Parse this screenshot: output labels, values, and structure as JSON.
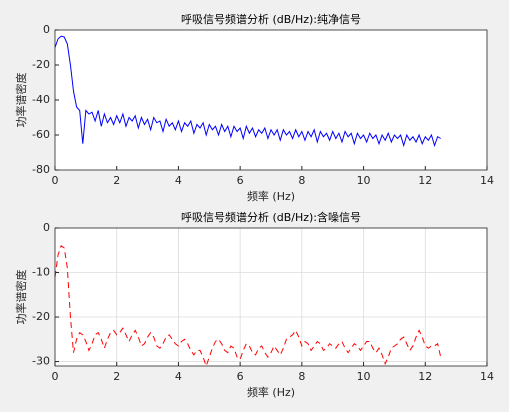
{
  "chart_data": [
    {
      "type": "line",
      "title": "呼吸信号频谱分析 (dB/Hz):纯净信号",
      "xlabel": "频率 (Hz)",
      "ylabel": "功率谱密度",
      "xlim": [
        0,
        14
      ],
      "xticks": [
        0,
        2,
        4,
        6,
        8,
        10,
        12,
        14
      ],
      "ylim": [
        -80,
        0
      ],
      "yticks": [
        -80,
        -60,
        -40,
        -20,
        0
      ],
      "grid": false,
      "color": "#0000ff",
      "linestyle": "solid",
      "x": [
        0,
        0.1,
        0.2,
        0.3,
        0.4,
        0.5,
        0.6,
        0.7,
        0.8,
        0.9,
        1,
        1.1,
        1.2,
        1.3,
        1.4,
        1.5,
        1.6,
        1.7,
        1.8,
        1.9,
        2,
        2.1,
        2.2,
        2.3,
        2.4,
        2.5,
        2.6,
        2.7,
        2.8,
        2.9,
        3,
        3.1,
        3.2,
        3.3,
        3.4,
        3.5,
        3.6,
        3.7,
        3.8,
        3.9,
        4,
        4.1,
        4.2,
        4.3,
        4.4,
        4.5,
        4.6,
        4.7,
        4.8,
        4.9,
        5,
        5.1,
        5.2,
        5.3,
        5.4,
        5.5,
        5.6,
        5.7,
        5.8,
        5.9,
        6,
        6.1,
        6.2,
        6.3,
        6.4,
        6.5,
        6.6,
        6.7,
        6.8,
        6.9,
        7,
        7.1,
        7.2,
        7.3,
        7.4,
        7.5,
        7.6,
        7.7,
        7.8,
        7.9,
        8,
        8.1,
        8.2,
        8.3,
        8.4,
        8.5,
        8.6,
        8.7,
        8.8,
        8.9,
        9,
        9.1,
        9.2,
        9.3,
        9.4,
        9.5,
        9.6,
        9.7,
        9.8,
        9.9,
        10,
        10.1,
        10.2,
        10.3,
        10.4,
        10.5,
        10.6,
        10.7,
        10.8,
        10.9,
        11,
        11.1,
        11.2,
        11.3,
        11.4,
        11.5,
        11.6,
        11.7,
        11.8,
        11.9,
        12,
        12.1,
        12.2,
        12.3,
        12.4,
        12.5
      ],
      "values": [
        -10,
        -5,
        -3.5,
        -4,
        -8,
        -20,
        -35,
        -44,
        -46,
        -65,
        -46,
        -48,
        -47,
        -52,
        -46,
        -55,
        -48,
        -53,
        -50,
        -54,
        -49,
        -53,
        -48,
        -55,
        -50,
        -52,
        -49,
        -56,
        -50,
        -54,
        -51,
        -57,
        -50,
        -53,
        -52,
        -58,
        -51,
        -55,
        -53,
        -57,
        -52,
        -58,
        -53,
        -55,
        -52,
        -59,
        -54,
        -56,
        -53,
        -60,
        -54,
        -57,
        -55,
        -60,
        -54,
        -58,
        -55,
        -61,
        -55,
        -58,
        -56,
        -62,
        -55,
        -59,
        -56,
        -61,
        -57,
        -59,
        -56,
        -62,
        -57,
        -60,
        -57,
        -63,
        -57,
        -60,
        -58,
        -62,
        -57,
        -61,
        -58,
        -63,
        -58,
        -61,
        -57,
        -64,
        -58,
        -61,
        -59,
        -63,
        -58,
        -62,
        -59,
        -64,
        -58,
        -61,
        -59,
        -65,
        -59,
        -62,
        -60,
        -64,
        -59,
        -62,
        -60,
        -65,
        -60,
        -63,
        -59,
        -64,
        -60,
        -62,
        -60,
        -66,
        -60,
        -63,
        -61,
        -64,
        -60,
        -65,
        -61,
        -63,
        -60,
        -66,
        -61,
        -62
      ]
    },
    {
      "type": "line",
      "title": "呼吸信号频谱分析 (dB/Hz):含噪信号",
      "xlabel": "频率 (Hz)",
      "ylabel": "功率谱密度",
      "xlim": [
        0,
        14
      ],
      "xticks": [
        0,
        2,
        4,
        6,
        8,
        10,
        12,
        14
      ],
      "ylim": [
        -31,
        0
      ],
      "yticks": [
        -30,
        -20,
        -10,
        0
      ],
      "grid": true,
      "color": "#ff0000",
      "linestyle": "dashed",
      "x": [
        0,
        0.1,
        0.2,
        0.3,
        0.4,
        0.5,
        0.6,
        0.7,
        0.8,
        0.9,
        1,
        1.1,
        1.2,
        1.3,
        1.4,
        1.5,
        1.6,
        1.7,
        1.8,
        1.9,
        2,
        2.1,
        2.2,
        2.3,
        2.4,
        2.5,
        2.6,
        2.7,
        2.8,
        2.9,
        3,
        3.1,
        3.2,
        3.3,
        3.4,
        3.5,
        3.6,
        3.7,
        3.8,
        3.9,
        4,
        4.1,
        4.2,
        4.3,
        4.4,
        4.5,
        4.6,
        4.7,
        4.8,
        4.9,
        5,
        5.1,
        5.2,
        5.3,
        5.4,
        5.5,
        5.6,
        5.7,
        5.8,
        5.9,
        6,
        6.1,
        6.2,
        6.3,
        6.4,
        6.5,
        6.6,
        6.7,
        6.8,
        6.9,
        7,
        7.1,
        7.2,
        7.3,
        7.4,
        7.5,
        7.6,
        7.7,
        7.8,
        7.9,
        8,
        8.1,
        8.2,
        8.3,
        8.4,
        8.5,
        8.6,
        8.7,
        8.8,
        8.9,
        9,
        9.1,
        9.2,
        9.3,
        9.4,
        9.5,
        9.6,
        9.7,
        9.8,
        9.9,
        10,
        10.1,
        10.2,
        10.3,
        10.4,
        10.5,
        10.6,
        10.7,
        10.8,
        10.9,
        11,
        11.1,
        11.2,
        11.3,
        11.4,
        11.5,
        11.6,
        11.7,
        11.8,
        11.9,
        12,
        12.1,
        12.2,
        12.3,
        12.4,
        12.5
      ],
      "values": [
        -11,
        -6,
        -4,
        -4.5,
        -9,
        -20,
        -28,
        -25,
        -23.5,
        -24,
        -25.5,
        -27.5,
        -26,
        -24,
        -23.5,
        -25,
        -27,
        -25,
        -23.5,
        -23,
        -24,
        -23.5,
        -22.5,
        -24,
        -25.5,
        -24,
        -23,
        -24.5,
        -26.5,
        -26,
        -24.5,
        -23.5,
        -24.5,
        -26.5,
        -27,
        -26,
        -24.5,
        -24,
        -25,
        -26,
        -26.5,
        -25.5,
        -25,
        -26,
        -27.5,
        -28.5,
        -27.5,
        -27.5,
        -29,
        -31,
        -29,
        -27,
        -25.5,
        -25,
        -26,
        -27.5,
        -28,
        -26.5,
        -27,
        -29,
        -29.5,
        -27.5,
        -26,
        -26.5,
        -28,
        -28.5,
        -27,
        -26.5,
        -28,
        -29,
        -28,
        -26.5,
        -27.5,
        -28.5,
        -27,
        -25,
        -24.5,
        -24,
        -23,
        -24.5,
        -26.5,
        -25.5,
        -26,
        -27.5,
        -26.5,
        -25.5,
        -26,
        -27.5,
        -27,
        -26,
        -26.5,
        -27,
        -26,
        -25.5,
        -27,
        -28,
        -27,
        -26,
        -26.5,
        -27.5,
        -26.5,
        -25.5,
        -25.5,
        -27,
        -28,
        -27,
        -28.5,
        -30.5,
        -29,
        -27,
        -26.5,
        -26,
        -25,
        -24.5,
        -26,
        -27.5,
        -26.5,
        -24.5,
        -23,
        -24.5,
        -26.5,
        -27,
        -26.5,
        -26.5,
        -26,
        -29
      ]
    }
  ]
}
